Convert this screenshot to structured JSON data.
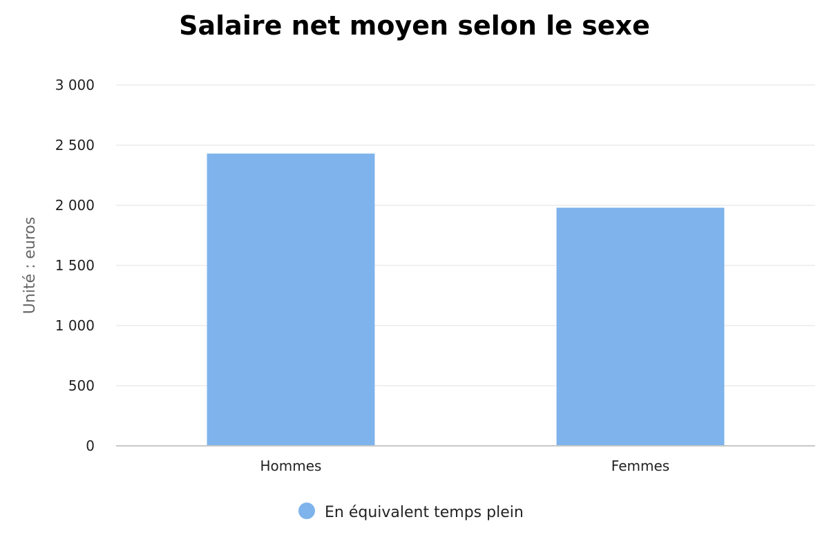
{
  "chart_data": {
    "type": "bar",
    "title": "Salaire net moyen selon le sexe",
    "ylabel": "Unité : euros",
    "xlabel": "",
    "categories": [
      "Hommes",
      "Femmes"
    ],
    "series": [
      {
        "name": "En équivalent temps plein",
        "values": [
          2430,
          1980
        ],
        "color": "#7eb3eb"
      }
    ],
    "ylim": [
      0,
      3000
    ],
    "yticks": [
      0,
      500,
      1000,
      1500,
      2000,
      2500,
      3000
    ],
    "ytick_labels": [
      "0",
      "500",
      "1 000",
      "1 500",
      "2 000",
      "2 500",
      "3 000"
    ],
    "grid": true,
    "legend": "bottom-center"
  }
}
